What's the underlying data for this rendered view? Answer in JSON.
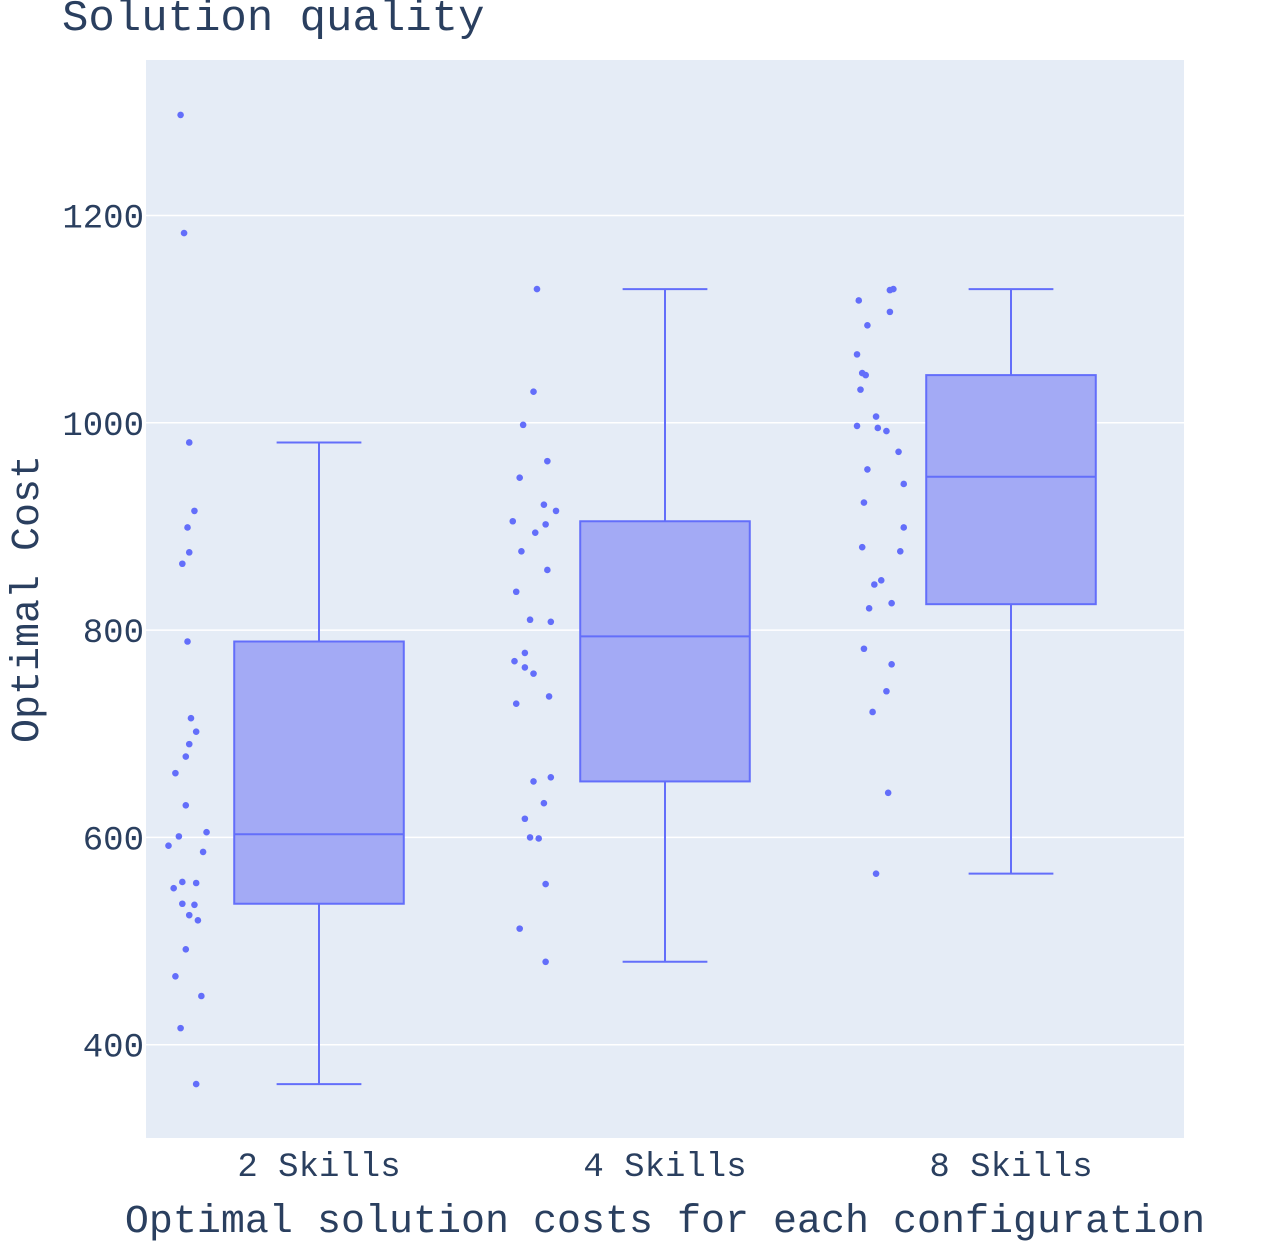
{
  "chart_data": {
    "type": "box",
    "title": "Solution quality",
    "xlabel": "Optimal solution costs for each configuration",
    "ylabel": "Optimal Cost",
    "ylim": [
      310,
      1350
    ],
    "yticks": [
      400,
      600,
      800,
      1000,
      1200
    ],
    "grid": true,
    "colors": {
      "plot_bg": "#e5ecf6",
      "grid": "#ffffff",
      "box_line": "#636efa",
      "box_fill": "#a3aaf5",
      "text": "#2a3f5f"
    },
    "categories": [
      "2 Skills",
      "4 Skills",
      "8 Skills"
    ],
    "boxes": [
      {
        "category": "2 Skills",
        "min": 362,
        "q1": 536,
        "median": 603,
        "q3": 789,
        "max": 981,
        "points": [
          {
            "o": -0.8,
            "y": 1297
          },
          {
            "o": -0.78,
            "y": 1183
          },
          {
            "o": -0.75,
            "y": 981
          },
          {
            "o": -0.72,
            "y": 915
          },
          {
            "o": -0.76,
            "y": 899
          },
          {
            "o": -0.75,
            "y": 875
          },
          {
            "o": -0.79,
            "y": 864
          },
          {
            "o": -0.76,
            "y": 789
          },
          {
            "o": -0.74,
            "y": 715
          },
          {
            "o": -0.71,
            "y": 702
          },
          {
            "o": -0.75,
            "y": 690
          },
          {
            "o": -0.77,
            "y": 678
          },
          {
            "o": -0.83,
            "y": 662
          },
          {
            "o": -0.77,
            "y": 631
          },
          {
            "o": -0.65,
            "y": 605
          },
          {
            "o": -0.81,
            "y": 601
          },
          {
            "o": -0.87,
            "y": 592
          },
          {
            "o": -0.67,
            "y": 586
          },
          {
            "o": -0.79,
            "y": 557
          },
          {
            "o": -0.71,
            "y": 556
          },
          {
            "o": -0.84,
            "y": 551
          },
          {
            "o": -0.79,
            "y": 536
          },
          {
            "o": -0.72,
            "y": 535
          },
          {
            "o": -0.75,
            "y": 525
          },
          {
            "o": -0.7,
            "y": 520
          },
          {
            "o": -0.77,
            "y": 492
          },
          {
            "o": -0.83,
            "y": 466
          },
          {
            "o": -0.68,
            "y": 447
          },
          {
            "o": -0.8,
            "y": 416
          },
          {
            "o": -0.71,
            "y": 362
          }
        ]
      },
      {
        "category": "4 Skills",
        "min": 480,
        "q1": 654,
        "median": 794,
        "q3": 905,
        "max": 1129,
        "points": [
          {
            "o": -0.74,
            "y": 1129
          },
          {
            "o": -0.76,
            "y": 1030
          },
          {
            "o": -0.82,
            "y": 998
          },
          {
            "o": -0.68,
            "y": 963
          },
          {
            "o": -0.84,
            "y": 947
          },
          {
            "o": -0.7,
            "y": 921
          },
          {
            "o": -0.63,
            "y": 915
          },
          {
            "o": -0.88,
            "y": 905
          },
          {
            "o": -0.69,
            "y": 902
          },
          {
            "o": -0.75,
            "y": 894
          },
          {
            "o": -0.83,
            "y": 876
          },
          {
            "o": -0.68,
            "y": 858
          },
          {
            "o": -0.86,
            "y": 837
          },
          {
            "o": -0.78,
            "y": 810
          },
          {
            "o": -0.66,
            "y": 808
          },
          {
            "o": -0.81,
            "y": 778
          },
          {
            "o": -0.87,
            "y": 770
          },
          {
            "o": -0.81,
            "y": 764
          },
          {
            "o": -0.76,
            "y": 758
          },
          {
            "o": -0.67,
            "y": 736
          },
          {
            "o": -0.86,
            "y": 729
          },
          {
            "o": -0.66,
            "y": 658
          },
          {
            "o": -0.76,
            "y": 654
          },
          {
            "o": -0.7,
            "y": 633
          },
          {
            "o": -0.81,
            "y": 618
          },
          {
            "o": -0.78,
            "y": 600
          },
          {
            "o": -0.73,
            "y": 599
          },
          {
            "o": -0.69,
            "y": 555
          },
          {
            "o": -0.84,
            "y": 512
          },
          {
            "o": -0.69,
            "y": 480
          }
        ]
      },
      {
        "category": "8 Skills",
        "min": 565,
        "q1": 825,
        "median": 948,
        "q3": 1046,
        "max": 1129,
        "points": [
          {
            "o": -0.68,
            "y": 1129
          },
          {
            "o": -0.7,
            "y": 1128
          },
          {
            "o": -0.88,
            "y": 1118
          },
          {
            "o": -0.7,
            "y": 1107
          },
          {
            "o": -0.83,
            "y": 1094
          },
          {
            "o": -0.89,
            "y": 1066
          },
          {
            "o": -0.86,
            "y": 1048
          },
          {
            "o": -0.84,
            "y": 1046
          },
          {
            "o": -0.87,
            "y": 1032
          },
          {
            "o": -0.78,
            "y": 1006
          },
          {
            "o": -0.89,
            "y": 997
          },
          {
            "o": -0.77,
            "y": 995
          },
          {
            "o": -0.72,
            "y": 992
          },
          {
            "o": -0.65,
            "y": 972
          },
          {
            "o": -0.83,
            "y": 955
          },
          {
            "o": -0.62,
            "y": 941
          },
          {
            "o": -0.85,
            "y": 923
          },
          {
            "o": -0.62,
            "y": 899
          },
          {
            "o": -0.86,
            "y": 880
          },
          {
            "o": -0.64,
            "y": 876
          },
          {
            "o": -0.75,
            "y": 848
          },
          {
            "o": -0.79,
            "y": 844
          },
          {
            "o": -0.69,
            "y": 826
          },
          {
            "o": -0.82,
            "y": 821
          },
          {
            "o": -0.85,
            "y": 782
          },
          {
            "o": -0.69,
            "y": 767
          },
          {
            "o": -0.72,
            "y": 741
          },
          {
            "o": -0.8,
            "y": 721
          },
          {
            "o": -0.71,
            "y": 643
          },
          {
            "o": -0.78,
            "y": 565
          }
        ]
      }
    ]
  }
}
